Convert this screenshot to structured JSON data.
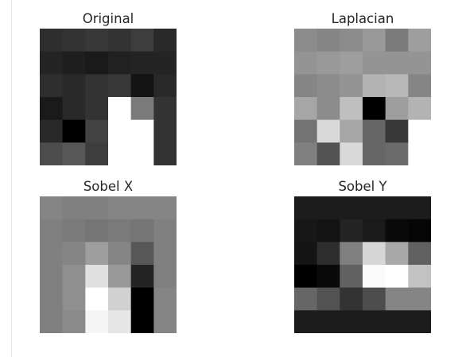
{
  "chart_data": [
    {
      "type": "heatmap",
      "title": "Original",
      "colormap": "gray",
      "grid": false,
      "axes": "off",
      "values": [
        [
          0.18,
          0.2,
          0.22,
          0.2,
          0.24,
          0.16
        ],
        [
          0.14,
          0.12,
          0.1,
          0.13,
          0.14,
          0.14
        ],
        [
          0.18,
          0.16,
          0.2,
          0.22,
          0.08,
          0.16
        ],
        [
          0.1,
          0.16,
          0.2,
          1.0,
          0.48,
          0.2
        ],
        [
          0.16,
          0.0,
          0.26,
          1.0,
          1.0,
          0.2
        ],
        [
          0.3,
          0.34,
          0.24,
          1.0,
          1.0,
          0.2
        ]
      ]
    },
    {
      "type": "heatmap",
      "title": "Laplacian",
      "colormap": "gray",
      "grid": false,
      "axes": "off",
      "values": [
        [
          0.55,
          0.52,
          0.55,
          0.6,
          0.48,
          0.62
        ],
        [
          0.58,
          0.6,
          0.62,
          0.58,
          0.58,
          0.58
        ],
        [
          0.52,
          0.55,
          0.58,
          0.7,
          0.72,
          0.52
        ],
        [
          0.65,
          0.55,
          0.75,
          0.0,
          0.62,
          0.7
        ],
        [
          0.45,
          0.85,
          0.65,
          0.4,
          0.22,
          1.0
        ],
        [
          0.5,
          0.32,
          0.85,
          0.4,
          0.42,
          1.0
        ]
      ]
    },
    {
      "type": "heatmap",
      "title": "Sobel X",
      "colormap": "gray",
      "grid": false,
      "axes": "off",
      "values": [
        [
          0.52,
          0.5,
          0.5,
          0.52,
          0.52,
          0.52
        ],
        [
          0.5,
          0.48,
          0.46,
          0.48,
          0.46,
          0.5
        ],
        [
          0.5,
          0.52,
          0.62,
          0.52,
          0.34,
          0.5
        ],
        [
          0.5,
          0.56,
          0.88,
          0.6,
          0.14,
          0.5
        ],
        [
          0.5,
          0.56,
          1.0,
          0.82,
          0.0,
          0.52
        ],
        [
          0.5,
          0.54,
          0.96,
          0.9,
          0.0,
          0.52
        ]
      ]
    },
    {
      "type": "heatmap",
      "title": "Sobel Y",
      "colormap": "gray",
      "grid": false,
      "axes": "off",
      "values": [
        [
          0.11,
          0.11,
          0.11,
          0.11,
          0.11,
          0.11
        ],
        [
          0.09,
          0.08,
          0.14,
          0.1,
          0.04,
          0.02
        ],
        [
          0.08,
          0.18,
          0.5,
          0.84,
          0.66,
          0.38
        ],
        [
          0.0,
          0.04,
          0.38,
          0.98,
          1.0,
          0.76
        ],
        [
          0.4,
          0.32,
          0.2,
          0.3,
          0.52,
          0.52
        ],
        [
          0.11,
          0.11,
          0.11,
          0.11,
          0.11,
          0.11
        ]
      ]
    }
  ]
}
